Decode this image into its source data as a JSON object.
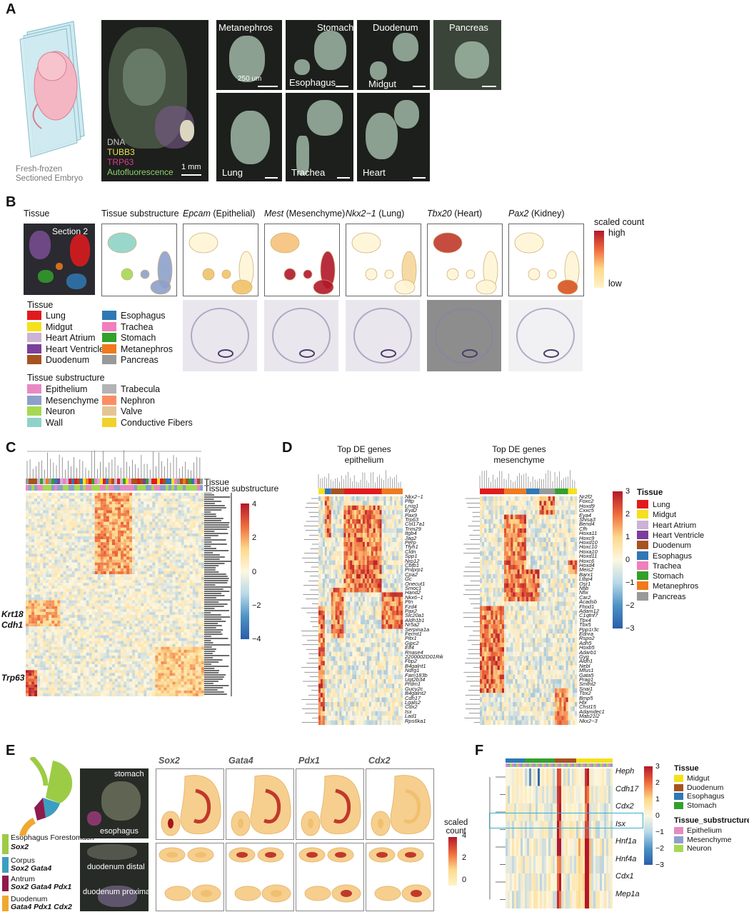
{
  "panels": {
    "A": "A",
    "B": "B",
    "C": "C",
    "D": "D",
    "E": "E",
    "F": "F"
  },
  "A": {
    "embryo_caption": [
      "Fresh-frozen",
      "Sectioned Embryo"
    ],
    "stain_labels": [
      "DNA",
      "TUBB3",
      "TRP63",
      "Autofluorescence"
    ],
    "stain_colors": [
      "#c8c8c8",
      "#e8e050",
      "#d83a8a",
      "#8fd070"
    ],
    "overview_scalebar": "1 mm",
    "crops": [
      "Metanephros",
      "Stomach",
      "Duodenum",
      "Pancreas",
      "Lung",
      "Trachea",
      "Heart"
    ],
    "crop_extra": {
      "esophagus": "Esophagus",
      "midgut": "Midgut"
    },
    "crop_scalebar": "250 um"
  },
  "B": {
    "tissue_title": "Tissue",
    "section_label": "Section 2",
    "column_titles": [
      {
        "gene": "",
        "rest": "Tissue substructure"
      },
      {
        "gene": "Epcam",
        "rest": " (Epithelial)"
      },
      {
        "gene": "Mest",
        "rest": " (Mesenchyme)"
      },
      {
        "gene": "Nkx2−1",
        "rest": " (Lung)"
      },
      {
        "gene": "Tbx20",
        "rest": " (Heart)"
      },
      {
        "gene": "Pax2",
        "rest": " (Kidney)"
      }
    ],
    "scale_title": "scaled count",
    "scale_high": "high",
    "scale_low": "low",
    "tissue_legend_title": "Tissue",
    "tissue_legend": [
      {
        "name": "Lung",
        "color": "#e31a1c"
      },
      {
        "name": "Midgut",
        "color": "#f5e11b"
      },
      {
        "name": "Heart Atrium",
        "color": "#cbb2d6"
      },
      {
        "name": "Heart Ventricle",
        "color": "#7b3f9a"
      },
      {
        "name": "Duodenum",
        "color": "#a6531f"
      },
      {
        "name": "Esophagus",
        "color": "#2f78b4"
      },
      {
        "name": "Trachea",
        "color": "#ef7fbd"
      },
      {
        "name": "Stomach",
        "color": "#33a02c"
      },
      {
        "name": "Metanephros",
        "color": "#f07a1c"
      },
      {
        "name": "Pancreas",
        "color": "#999999"
      }
    ],
    "substructure_legend_title": "Tissue substructure",
    "substructure_legend": [
      {
        "name": "Epithelium",
        "color": "#e78ac3"
      },
      {
        "name": "Mesenchyme",
        "color": "#8da0cb"
      },
      {
        "name": "Neuron",
        "color": "#a6d854"
      },
      {
        "name": "Wall",
        "color": "#8fd3c8"
      },
      {
        "name": "Trabecula",
        "color": "#b3b3b3"
      },
      {
        "name": "Nephron",
        "color": "#fc8d62"
      },
      {
        "name": "Valve",
        "color": "#e5c494"
      },
      {
        "name": "Conductive Fibers",
        "color": "#f1d12b"
      }
    ]
  },
  "C": {
    "row_annot": [
      "Tissue",
      "Tissue substructure"
    ],
    "gene_labels": [
      "Krt18",
      "Cdh1",
      "Trp63"
    ],
    "colorbar_ticks": [
      "4",
      "2",
      "0",
      "−2",
      "−4"
    ]
  },
  "D": {
    "left_title": [
      "Top DE genes",
      "epithelium"
    ],
    "right_title": [
      "Top DE genes",
      "mesenchyme"
    ],
    "left_genes": [
      "Nkx2−1",
      "Pltp",
      "Lrrig1",
      "Eya2",
      "Pax9",
      "Trp63",
      "Col17a1",
      "Trim29",
      "Itgb4",
      "Jag2",
      "Perp",
      "Tfyh1",
      "Cldn",
      "Spp1",
      "Nrp12",
      "Cbfb1",
      "Pnlprp1",
      "Cpa2",
      "Gc",
      "Onecut1",
      "Smoc1",
      "Hand2",
      "Nkx6−1",
      "Ptn",
      "Fzd4",
      "Pax2",
      "Slc20a1",
      "Aldh1b1",
      "Nr5a2",
      "Serpina1a",
      "Fermt1",
      "Pitx1",
      "Gipc2",
      "Elf4",
      "Rnase4",
      "2200002D01Rik",
      "Fbp2",
      "B4galnt1",
      "Ndrg1",
      "Fam183b",
      "Ugt2b34",
      "Prdm1",
      "Gucy2c",
      "B4galnt2",
      "Cdh17",
      "Lgals2",
      "Cdx2",
      "Isx",
      "Lad1",
      "Rps6ka1"
    ],
    "right_genes": [
      "Nr2f2",
      "Foxc2",
      "Hoxd9",
      "Cxxc5",
      "Eya4",
      "Shisa3",
      "Bend4",
      "Cfh",
      "Hoxa11",
      "Hoxc9",
      "Hoxd10",
      "Hoxc10",
      "Hoxa10",
      "Hoxd11",
      "Hoxc6",
      "Hoxd4",
      "Meis2",
      "Barx1",
      "Ltbp4",
      "Osr1",
      "Nfib",
      "Nfix",
      "Car2",
      "Acadsb",
      "Fhod1",
      "Adam12",
      "C1qtnf7",
      "Tbx4",
      "Tbx5",
      "Ppp1r3c",
      "Ednra",
      "Rspo2",
      "Adh5",
      "Hoxb5",
      "Adarb1",
      "Gyg",
      "Aldh1",
      "Nebl",
      "Mfus1",
      "Gata5",
      "Prag1",
      "Smtnl2",
      "Snai1",
      "Tbx2",
      "Bmp5",
      "Hlx",
      "Chst15",
      "Adamdec1",
      "Mab21l2",
      "Nkx2−3"
    ],
    "colorbar_ticks": [
      "3",
      "2",
      "1",
      "0",
      "−1",
      "−2",
      "−3"
    ],
    "legend_title": "Tissue",
    "legend": [
      {
        "name": "Lung",
        "color": "#e31a1c"
      },
      {
        "name": "Midgut",
        "color": "#f5e11b"
      },
      {
        "name": "Heart Atrium",
        "color": "#cbb2d6"
      },
      {
        "name": "Heart Ventricle",
        "color": "#7b3f9a"
      },
      {
        "name": "Duodenum",
        "color": "#a6531f"
      },
      {
        "name": "Esophagus",
        "color": "#2f78b4"
      },
      {
        "name": "Trachea",
        "color": "#ef7fbd"
      },
      {
        "name": "Stomach",
        "color": "#33a02c"
      },
      {
        "name": "Metanephros",
        "color": "#f07a1c"
      },
      {
        "name": "Pancreas",
        "color": "#999999"
      }
    ]
  },
  "E": {
    "legend": [
      {
        "region": "Esophagus Forestomach",
        "genes": "Sox2",
        "color": "#9ccc45"
      },
      {
        "region": "Corpus",
        "genes": "Sox2 Gata4",
        "color": "#3d9dc0"
      },
      {
        "region": "Antrum",
        "genes": "Sox2 Gata4 Pdx1",
        "color": "#8e1a4e"
      },
      {
        "region": "Duodenum",
        "genes": "Gata4 Pdx1 Cdx2",
        "color": "#f0a830"
      }
    ],
    "micro_labels": [
      "stomach",
      "esophagus",
      "duodenum distal",
      "duodenum proximal"
    ],
    "gene_columns": [
      "Sox2",
      "Gata4",
      "Pdx1",
      "Cdx2"
    ],
    "scale_title": [
      "scaled",
      "count"
    ],
    "scale_ticks": [
      "4",
      "2",
      "0"
    ]
  },
  "F": {
    "genes": [
      "Heph",
      "Cdh17",
      "Cdx2",
      "Isx",
      "Hnf1a",
      "Hnf4a",
      "Cdx1",
      "Mep1a"
    ],
    "colorbar_ticks": [
      "3",
      "2",
      "1",
      "0",
      "−1",
      "−2",
      "−3"
    ],
    "tissue_title": "Tissue",
    "tissue_legend": [
      {
        "name": "Midgut",
        "color": "#f5e11b"
      },
      {
        "name": "Duodenum",
        "color": "#a6531f"
      },
      {
        "name": "Esophagus",
        "color": "#2f78b4"
      },
      {
        "name": "Stomach",
        "color": "#33a02c"
      }
    ],
    "sub_title": "Tissue_substructure",
    "sub_legend": [
      {
        "name": "Epithelium",
        "color": "#e78ac3"
      },
      {
        "name": "Mesenchyme",
        "color": "#8da0cb"
      },
      {
        "name": "Neuron",
        "color": "#a6d854"
      }
    ]
  }
}
